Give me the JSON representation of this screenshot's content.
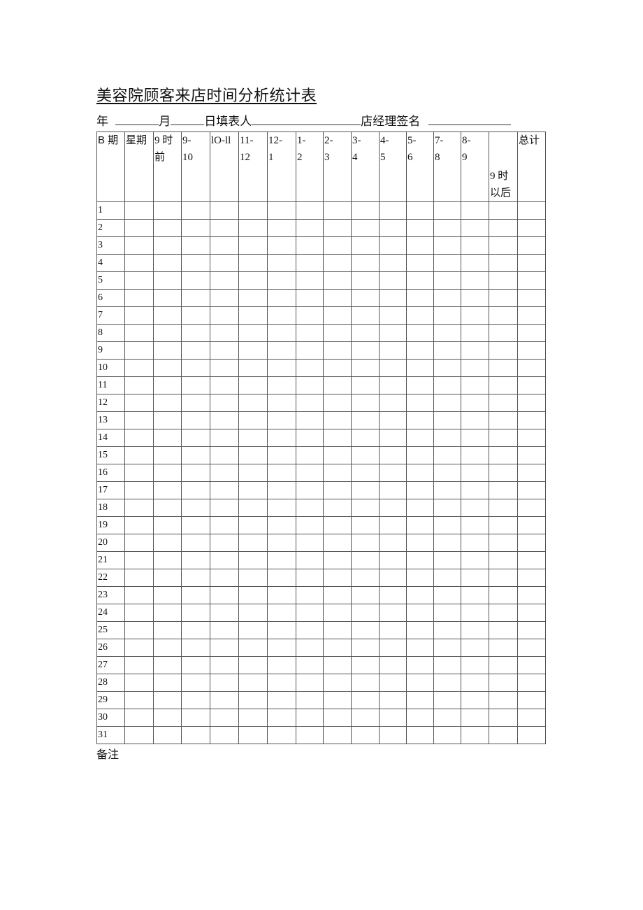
{
  "title": "美容院顾客来店时间分析统计表",
  "fill_line": {
    "year": "年",
    "month": "月",
    "day_filler": "日填表人",
    "manager_sign": "店经理签名"
  },
  "table": {
    "headers": [
      "B 期",
      "星期",
      "9 时\n前",
      "9-\n10",
      "lO-ll",
      "11-\n12",
      "12-\n1",
      "1-\n2",
      "2-\n3",
      "3-\n4",
      "4-\n5",
      "5-\n6",
      "7-\n8",
      "8-\n9",
      "9 时\n以后",
      "总计"
    ],
    "rows": [
      "1",
      "2",
      "3",
      "4",
      "5",
      "6",
      "7",
      "8",
      "9",
      "10",
      "11",
      "12",
      "13",
      "14",
      "15",
      "16",
      "17",
      "18",
      "19",
      "20",
      "21",
      "22",
      "23",
      "24",
      "25",
      "26",
      "27",
      "28",
      "29",
      "30",
      "31"
    ]
  },
  "note": "备注"
}
